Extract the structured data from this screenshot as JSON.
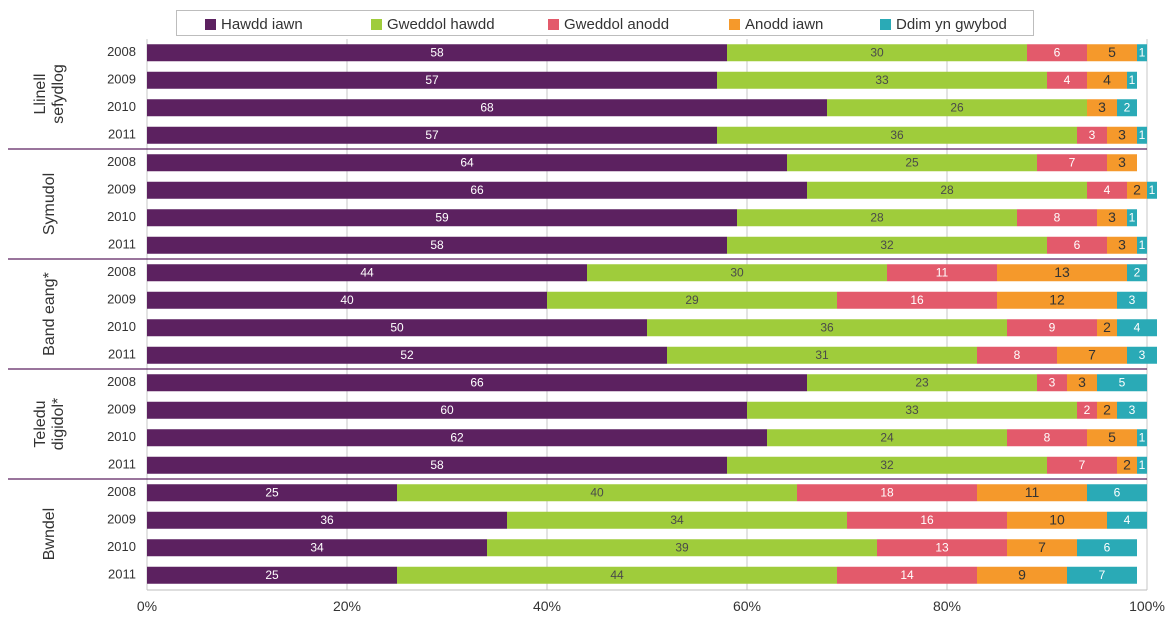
{
  "chart_data": {
    "type": "bar",
    "orientation": "horizontal",
    "stacked": "percent",
    "legend_position": "top",
    "grid": true,
    "xlim": [
      0,
      100
    ],
    "x_ticks": [
      "0%",
      "20%",
      "40%",
      "60%",
      "80%",
      "100%"
    ],
    "series": [
      {
        "name": "Hawdd iawn",
        "color": "#5c2160"
      },
      {
        "name": "Gweddol hawdd",
        "color": "#9fcc3b"
      },
      {
        "name": "Gweddol anodd",
        "color": "#e35a6b"
      },
      {
        "name": "Anodd iawn",
        "color": "#f5992b"
      },
      {
        "name": "Ddim yn gwybod",
        "color": "#2aaab6"
      }
    ],
    "groups": [
      {
        "label": "Llinell sefydlog",
        "label_lines": [
          "Llinell",
          "sefydlog"
        ],
        "bars": [
          {
            "year": "2008",
            "values": [
              58,
              30,
              6,
              5,
              1
            ]
          },
          {
            "year": "2009",
            "values": [
              57,
              33,
              4,
              4,
              1
            ]
          },
          {
            "year": "2010",
            "values": [
              68,
              26,
              0,
              3,
              2
            ]
          },
          {
            "year": "2011",
            "values": [
              57,
              36,
              3,
              3,
              1
            ]
          }
        ]
      },
      {
        "label": "Symudol",
        "label_lines": [
          "Symudol"
        ],
        "bars": [
          {
            "year": "2008",
            "values": [
              64,
              25,
              7,
              3,
              0
            ]
          },
          {
            "year": "2009",
            "values": [
              66,
              28,
              4,
              2,
              1
            ]
          },
          {
            "year": "2010",
            "values": [
              59,
              28,
              8,
              3,
              1
            ]
          },
          {
            "year": "2011",
            "values": [
              58,
              32,
              6,
              3,
              1
            ]
          }
        ]
      },
      {
        "label": "Band eang*",
        "label_lines": [
          "Band eang*"
        ],
        "bars": [
          {
            "year": "2008",
            "values": [
              44,
              30,
              11,
              13,
              2
            ]
          },
          {
            "year": "2009",
            "values": [
              40,
              29,
              16,
              12,
              3
            ]
          },
          {
            "year": "2010",
            "values": [
              50,
              36,
              9,
              2,
              4
            ]
          },
          {
            "year": "2011",
            "values": [
              52,
              31,
              8,
              7,
              3
            ]
          }
        ]
      },
      {
        "label": "Teledu digidol*",
        "label_lines": [
          "Teledu",
          "digidol*"
        ],
        "bars": [
          {
            "year": "2008",
            "values": [
              66,
              23,
              3,
              3,
              5
            ]
          },
          {
            "year": "2009",
            "values": [
              60,
              33,
              2,
              2,
              3
            ]
          },
          {
            "year": "2010",
            "values": [
              62,
              24,
              8,
              5,
              1
            ]
          },
          {
            "year": "2011",
            "values": [
              58,
              32,
              7,
              2,
              1
            ]
          }
        ]
      },
      {
        "label": "Bwndel",
        "label_lines": [
          "Bwndel"
        ],
        "bars": [
          {
            "year": "2008",
            "values": [
              25,
              40,
              18,
              11,
              6
            ]
          },
          {
            "year": "2009",
            "values": [
              36,
              34,
              16,
              10,
              4
            ]
          },
          {
            "year": "2010",
            "values": [
              34,
              39,
              13,
              7,
              6
            ]
          },
          {
            "year": "2011",
            "values": [
              25,
              44,
              14,
              9,
              7
            ]
          }
        ]
      }
    ]
  }
}
